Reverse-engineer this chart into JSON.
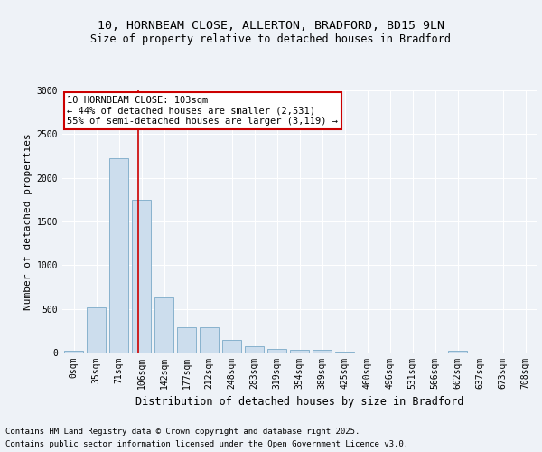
{
  "title1": "10, HORNBEAM CLOSE, ALLERTON, BRADFORD, BD15 9LN",
  "title2": "Size of property relative to detached houses in Bradford",
  "xlabel": "Distribution of detached houses by size in Bradford",
  "ylabel": "Number of detached properties",
  "bar_color": "#ccdded",
  "bar_edge_color": "#7aaac8",
  "vline_color": "#cc0000",
  "vline_pos": 2.85,
  "categories": [
    "0sqm",
    "35sqm",
    "71sqm",
    "106sqm",
    "142sqm",
    "177sqm",
    "212sqm",
    "248sqm",
    "283sqm",
    "319sqm",
    "354sqm",
    "389sqm",
    "425sqm",
    "460sqm",
    "496sqm",
    "531sqm",
    "566sqm",
    "602sqm",
    "637sqm",
    "673sqm",
    "708sqm"
  ],
  "values": [
    25,
    520,
    2220,
    1750,
    630,
    290,
    290,
    140,
    75,
    45,
    30,
    30,
    10,
    0,
    0,
    0,
    0,
    20,
    0,
    0,
    0
  ],
  "ylim": [
    0,
    3000
  ],
  "yticks": [
    0,
    500,
    1000,
    1500,
    2000,
    2500,
    3000
  ],
  "annotation_title": "10 HORNBEAM CLOSE: 103sqm",
  "annotation_line1": "← 44% of detached houses are smaller (2,531)",
  "annotation_line2": "55% of semi-detached houses are larger (3,119) →",
  "annotation_box_color": "#ffffff",
  "annotation_box_edge": "#cc0000",
  "footnote1": "Contains HM Land Registry data © Crown copyright and database right 2025.",
  "footnote2": "Contains public sector information licensed under the Open Government Licence v3.0.",
  "background_color": "#eef2f7",
  "grid_color": "#ffffff",
  "title_fontsize": 9.5,
  "subtitle_fontsize": 8.5,
  "ylabel_fontsize": 8,
  "xlabel_fontsize": 8.5,
  "tick_fontsize": 7,
  "annotation_fontsize": 7.5,
  "footnote_fontsize": 6.5
}
